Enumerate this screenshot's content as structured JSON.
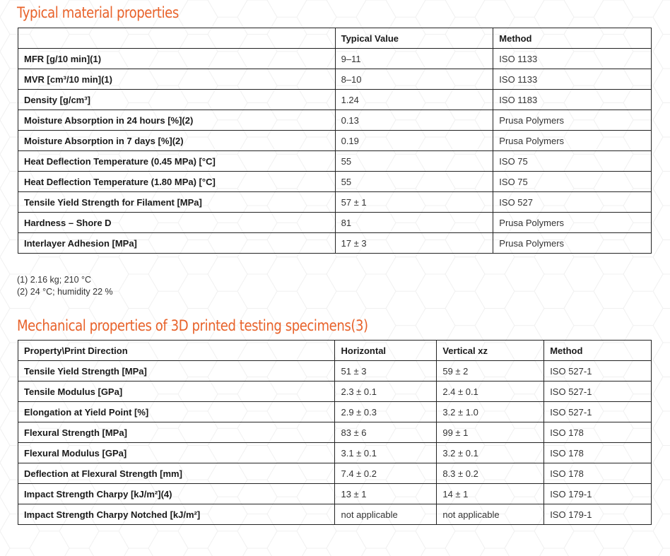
{
  "colors": {
    "accent": "#e8622a",
    "border": "#222222"
  },
  "section1": {
    "title": "Typical material properties",
    "headers": [
      "",
      "Typical Value",
      "Method"
    ],
    "rows": [
      {
        "property": "MFR [g/10 min](1)",
        "value": "9–11",
        "method": "ISO 1133"
      },
      {
        "property": "MVR [cm³/10 min](1)",
        "value": "8–10",
        "method": "ISO 1133"
      },
      {
        "property": "Density [g/cm³]",
        "value": "1.24",
        "method": "ISO 1183"
      },
      {
        "property": "Moisture Absorption in 24 hours [%](2)",
        "value": "0.13",
        "method": "Prusa Polymers"
      },
      {
        "property": "Moisture Absorption in 7 days [%](2)",
        "value": "0.19",
        "method": "Prusa Polymers"
      },
      {
        "property": "Heat Deflection Temperature (0.45 MPa) [°C]",
        "value": "55",
        "method": "ISO 75"
      },
      {
        "property": "Heat Deflection Temperature (1.80 MPa) [°C]",
        "value": "55",
        "method": "ISO 75"
      },
      {
        "property": "Tensile Yield Strength for Filament [MPa]",
        "value": "57 ± 1",
        "method": "ISO 527"
      },
      {
        "property": "Hardness – Shore D",
        "value": "81",
        "method": "Prusa Polymers"
      },
      {
        "property": "Interlayer Adhesion [MPa]",
        "value": "17 ± 3",
        "method": "Prusa Polymers"
      }
    ]
  },
  "notes": [
    "(1) 2.16 kg; 210 °C",
    "(2) 24 °C; humidity 22 %"
  ],
  "section2": {
    "title": "Mechanical properties of 3D printed testing specimens(3)",
    "headers": [
      "Property\\Print Direction",
      "Horizontal",
      "Vertical xz",
      "Method"
    ],
    "rows": [
      {
        "property": "Tensile Yield Strength [MPa]",
        "horizontal": "51 ± 3",
        "vertical": "59 ± 2",
        "method": "ISO 527-1"
      },
      {
        "property": "Tensile Modulus [GPa]",
        "horizontal": "2.3 ± 0.1",
        "vertical": "2.4 ± 0.1",
        "method": "ISO 527-1"
      },
      {
        "property": "Elongation at Yield Point [%]",
        "horizontal": "2.9 ± 0.3",
        "vertical": "3.2 ± 1.0",
        "method": "ISO 527-1"
      },
      {
        "property": "Flexural Strength [MPa]",
        "horizontal": "83 ± 6",
        "vertical": "99 ± 1",
        "method": "ISO 178"
      },
      {
        "property": "Flexural Modulus [GPa]",
        "horizontal": "3.1 ± 0.1",
        "vertical": "3.2 ± 0.1",
        "method": "ISO 178"
      },
      {
        "property": "Deflection at Flexural Strength [mm]",
        "horizontal": "7.4 ± 0.2",
        "vertical": "8.3 ± 0.2",
        "method": "ISO 178"
      },
      {
        "property": "Impact Strength Charpy [kJ/m²](4)",
        "horizontal": "13 ± 1",
        "vertical": "14 ± 1",
        "method": "ISO 179-1"
      },
      {
        "property": "Impact Strength Charpy Notched [kJ/m²]",
        "horizontal": "not applicable",
        "vertical": "not applicable",
        "method": "ISO 179-1"
      }
    ]
  }
}
